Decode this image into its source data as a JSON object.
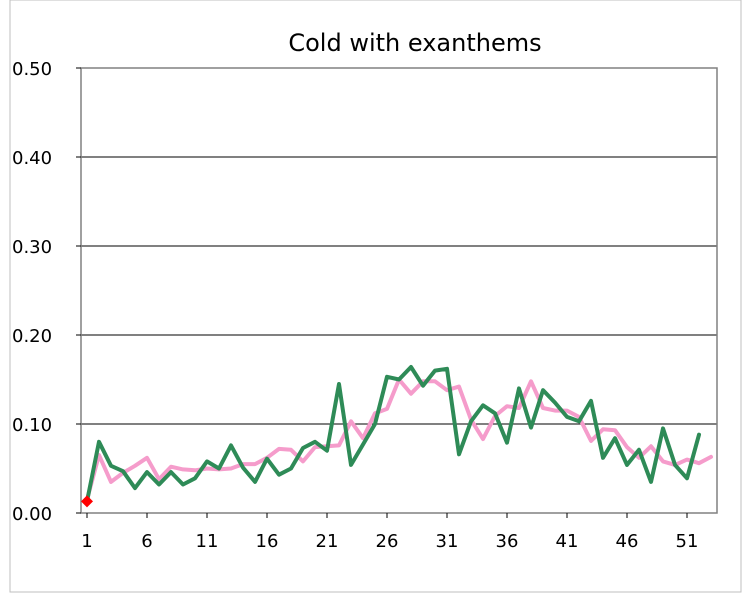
{
  "chart_data": {
    "type": "line",
    "title": "Cold with exanthems",
    "xlabel": "",
    "ylabel": "",
    "ylim": [
      0,
      0.5
    ],
    "yticks": [
      "0.00",
      "0.10",
      "0.20",
      "0.30",
      "0.40",
      "0.50"
    ],
    "xlim": [
      1,
      52
    ],
    "xticks": [
      "1",
      "6",
      "11",
      "16",
      "21",
      "26",
      "31",
      "36",
      "41",
      "46",
      "51"
    ],
    "grid": true,
    "legend": "none",
    "colors": {
      "pink_series": "#f59ccb",
      "green_series": "#2e8b57",
      "marker": "#ff0000",
      "grid": "#000000",
      "frame": "#808080"
    },
    "series": [
      {
        "values": [
          0.015,
          0.065,
          0.035,
          0.045,
          0.053,
          0.062,
          0.038,
          0.052,
          0.049,
          0.048,
          0.05,
          0.049,
          0.05,
          0.055,
          0.055,
          0.062,
          0.072,
          0.071,
          0.058,
          0.074,
          0.075,
          0.076,
          0.103,
          0.084,
          0.112,
          0.117,
          0.15,
          0.134,
          0.148,
          0.148,
          0.138,
          0.142,
          0.105,
          0.083,
          0.109,
          0.12,
          0.118,
          0.148,
          0.118,
          0.115,
          0.115,
          0.108,
          0.081,
          0.094,
          0.093,
          0.074,
          0.062,
          0.075,
          0.058,
          0.054,
          0.06,
          0.056,
          0.063
        ]
      },
      {
        "values": [
          0.013,
          0.08,
          0.053,
          0.047,
          0.028,
          0.046,
          0.032,
          0.046,
          0.032,
          0.039,
          0.058,
          0.05,
          0.076,
          0.051,
          0.035,
          0.061,
          0.043,
          0.05,
          0.073,
          0.08,
          0.07,
          0.145,
          0.054,
          0.077,
          0.1,
          0.153,
          0.15,
          0.164,
          0.143,
          0.16,
          0.162,
          0.066,
          0.103,
          0.121,
          0.112,
          0.079,
          0.14,
          0.096,
          0.138,
          0.124,
          0.108,
          0.103,
          0.126,
          0.062,
          0.084,
          0.054,
          0.071,
          0.035,
          0.095,
          0.054,
          0.039,
          0.088
        ]
      }
    ],
    "markers": [
      {
        "x": 1,
        "y": 0.013
      }
    ]
  }
}
